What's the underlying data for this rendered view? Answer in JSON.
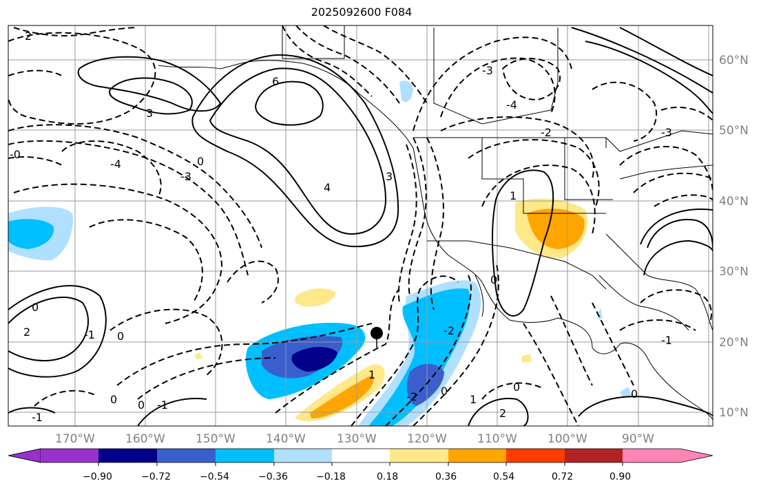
{
  "title": "2025092600 F084",
  "lon_labels": [
    "170°W",
    "160°W",
    "150°W",
    "140°W",
    "130°W",
    "120°W",
    "110°W",
    "100°W",
    "90°W"
  ],
  "lat_labels": [
    "60°N",
    "50°N",
    "40°N",
    "30°N",
    "20°N",
    "10°N"
  ],
  "colorbar": {
    "ticks": [
      "−0.90",
      "−0.72",
      "−0.54",
      "−0.36",
      "−0.18",
      "0.18",
      "0.36",
      "0.54",
      "0.72",
      "0.90"
    ],
    "colors": [
      "#9932cc",
      "#00008b",
      "#3a5fcd",
      "#00bfff",
      "#b0e0ff",
      "#ffffff",
      "#ffe88a",
      "#ffa500",
      "#ff3c00",
      "#b22222",
      "#ff85b5"
    ]
  },
  "contour_labels": [
    "6",
    "4",
    "3",
    "2",
    "0",
    "-1",
    "-2",
    "-3",
    "-4",
    "1"
  ],
  "marker": "storm-center-dot"
}
